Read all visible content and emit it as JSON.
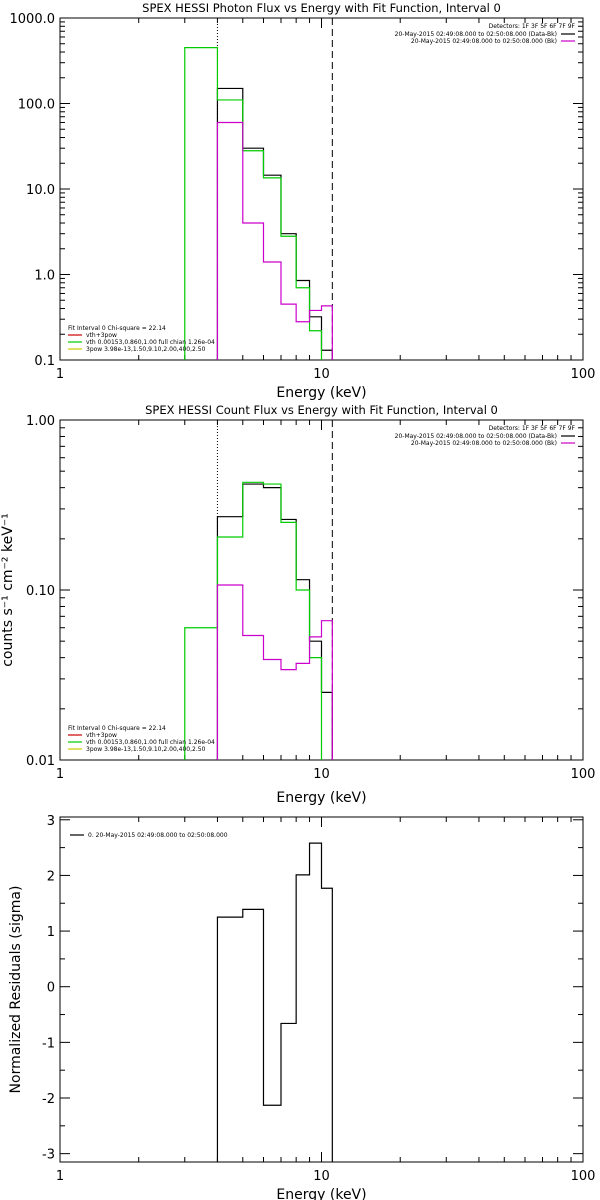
{
  "chart_data": [
    {
      "type": "line",
      "title": "SPEX HESSI Photon Flux vs Energy with Fit Function, Interval 0",
      "xlabel": "Energy (keV)",
      "ylabel": "",
      "xscale": "log",
      "yscale": "log",
      "xlim": [
        1,
        100
      ],
      "ylim": [
        0.1,
        1000
      ],
      "x_tick_labels": [
        "1",
        "10",
        "100"
      ],
      "y_tick_labels": [
        "0.1",
        "1.0",
        "10.0",
        "100.0",
        "1000.0"
      ],
      "x_tick_values": [
        1,
        10,
        100
      ],
      "y_tick_values": [
        0.1,
        1,
        10,
        100,
        1000
      ],
      "vlines": [
        {
          "x": 4,
          "style": "dotted"
        },
        {
          "x": 11,
          "style": "dashed"
        }
      ],
      "legend_top_right": {
        "title": "Detectors: 1F 3F 5F 6F 7F 9F",
        "entries": [
          {
            "text": "20-May-2015 02:49:08.000 to 02:50:08.000 (Data-Bk)",
            "color": "#000000"
          },
          {
            "text": "20-May-2015 02:49:08.000 to 02:50:08.000 (Bk)",
            "color": "#cc00cc"
          }
        ]
      },
      "legend_bottom_left": {
        "title": "Fit Interval 0   Chi-square = 22.14",
        "entries": [
          {
            "text": "vth+3pow",
            "color": "#cc0000"
          },
          {
            "text": "vth 0.00153,0.860,1.00  full chian 1.26e-04",
            "color": "#00cc00"
          },
          {
            "text": "3pow 3.98e-13,1.50,9.10,2.00,400,2.50",
            "color": "#cccc00"
          }
        ]
      },
      "series": [
        {
          "name": "Data-Bk",
          "color": "#000000",
          "edges": [
            4,
            5,
            6,
            7,
            8,
            9,
            10,
            11
          ],
          "values": [
            150,
            30,
            14.5,
            3.0,
            0.85,
            0.32,
            0.13
          ]
        },
        {
          "name": "vth",
          "color": "#00cc00",
          "edges": [
            3,
            4,
            5,
            6,
            7,
            8,
            9,
            10
          ],
          "values": [
            450,
            110,
            28,
            13.5,
            2.8,
            0.7,
            0.22
          ]
        },
        {
          "name": "Bk",
          "color": "#cc00cc",
          "edges": [
            4,
            5,
            6,
            7,
            8,
            9,
            10,
            11
          ],
          "values": [
            60,
            4.0,
            1.4,
            0.45,
            0.28,
            0.38,
            0.43
          ]
        }
      ]
    },
    {
      "type": "line",
      "title": "SPEX HESSI Count Flux vs Energy with Fit Function, Interval 0",
      "xlabel": "Energy (keV)",
      "ylabel": "counts s⁻¹ cm⁻² keV⁻¹",
      "xscale": "log",
      "yscale": "log",
      "xlim": [
        1,
        100
      ],
      "ylim": [
        0.01,
        1
      ],
      "x_tick_labels": [
        "1",
        "10",
        "100"
      ],
      "y_tick_labels": [
        "0.01",
        "0.10",
        "1.00"
      ],
      "x_tick_values": [
        1,
        10,
        100
      ],
      "y_tick_values": [
        0.01,
        0.1,
        1
      ],
      "vlines": [
        {
          "x": 4,
          "style": "dotted"
        },
        {
          "x": 11,
          "style": "dashed"
        }
      ],
      "legend_top_right": {
        "title": "Detectors: 1F 3F 5F 6F 7F 9F",
        "entries": [
          {
            "text": "20-May-2015 02:49:08.000 to 02:50:08.000 (Data-Bk)",
            "color": "#000000"
          },
          {
            "text": "20-May-2015 02:49:08.000 to 02:50:08.000 (Bk)",
            "color": "#cc00cc"
          }
        ]
      },
      "legend_bottom_left": {
        "title": "Fit Interval 0   Chi-square = 22.14",
        "entries": [
          {
            "text": "vth+3pow",
            "color": "#cc0000"
          },
          {
            "text": "vth 0.00153,0.860,1.00  full chian 1.26e-04",
            "color": "#00cc00"
          },
          {
            "text": "3pow 3.98e-13,1.50,9.10,2.00,400,2.50",
            "color": "#cccc00"
          }
        ]
      },
      "series": [
        {
          "name": "Data-Bk",
          "color": "#000000",
          "edges": [
            4,
            5,
            6,
            7,
            8,
            9,
            10,
            11
          ],
          "values": [
            0.27,
            0.42,
            0.4,
            0.26,
            0.115,
            0.05,
            0.025
          ]
        },
        {
          "name": "vth",
          "color": "#00cc00",
          "edges": [
            3,
            4,
            5,
            6,
            7,
            8,
            9,
            10
          ],
          "values": [
            0.06,
            0.205,
            0.43,
            0.42,
            0.25,
            0.1,
            0.04
          ]
        },
        {
          "name": "Bk",
          "color": "#cc00cc",
          "edges": [
            4,
            5,
            6,
            7,
            8,
            9,
            10,
            11
          ],
          "values": [
            0.107,
            0.054,
            0.039,
            0.034,
            0.037,
            0.053,
            0.066
          ]
        }
      ]
    },
    {
      "type": "line",
      "title": "",
      "xlabel": "Energy (keV)",
      "ylabel": "Normalized Residuals (sigma)",
      "xscale": "log",
      "yscale": "linear",
      "xlim": [
        1,
        100
      ],
      "ylim": [
        -3.15,
        3.05
      ],
      "x_tick_labels": [
        "1",
        "10",
        "100"
      ],
      "y_tick_labels": [
        "-3",
        "-2",
        "-1",
        "0",
        "1",
        "2",
        "3"
      ],
      "x_tick_values": [
        1,
        10,
        100
      ],
      "y_tick_values": [
        -3,
        -2,
        -1,
        0,
        1,
        2,
        3
      ],
      "vlines": [],
      "legend_top_left": {
        "entries": [
          {
            "text": "0. 20-May-2015 02:49:08.000 to 02:50:08.000",
            "color": "#000000"
          }
        ]
      },
      "series": [
        {
          "name": "residuals",
          "color": "#000000",
          "edges": [
            4,
            5,
            6,
            7,
            8,
            9,
            10,
            11
          ],
          "values": [
            1.25,
            1.39,
            -2.13,
            -0.66,
            2.01,
            2.58,
            1.77
          ]
        }
      ]
    }
  ]
}
